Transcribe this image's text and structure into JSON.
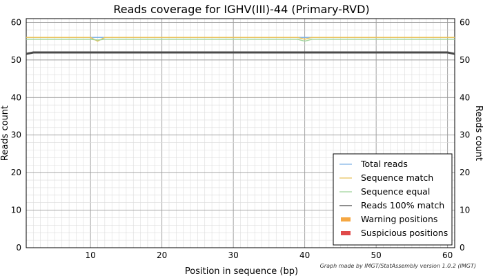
{
  "chart_data": {
    "type": "line",
    "title": "Reads coverage for IGHV(III)-44 (Primary-RVD)",
    "xlabel": "Position in sequence (bp)",
    "ylabel": "Reads count",
    "ylabel_right": "Reads count",
    "credit": "Graph made by IMGT/StatAssembly version 1.0.2 (IMGT)",
    "xlim": [
      1,
      61
    ],
    "ylim": [
      0,
      61
    ],
    "xticks": [
      10,
      20,
      30,
      40,
      50,
      60
    ],
    "yticks": [
      0,
      10,
      20,
      30,
      40,
      50,
      60
    ],
    "grid": true,
    "legend_position": "lower-right",
    "series": [
      {
        "name": "Total reads",
        "color": "#7fb2e5",
        "width": 1.5,
        "points": [
          [
            1,
            56
          ],
          [
            10,
            56
          ],
          [
            11,
            56
          ],
          [
            12,
            56
          ],
          [
            39,
            56
          ],
          [
            40,
            56
          ],
          [
            41,
            56
          ],
          [
            61,
            56
          ]
        ]
      },
      {
        "name": "Sequence match",
        "color": "#e8c15a",
        "width": 1.5,
        "points": [
          [
            1,
            56
          ],
          [
            10,
            56
          ],
          [
            11,
            55
          ],
          [
            12,
            56
          ],
          [
            39,
            56
          ],
          [
            40,
            55.5
          ],
          [
            41,
            56
          ],
          [
            61,
            56
          ]
        ]
      },
      {
        "name": "Sequence equal",
        "color": "#9fd49a",
        "width": 1.5,
        "points": [
          [
            1,
            55.5
          ],
          [
            10,
            55.5
          ],
          [
            11,
            55.3
          ],
          [
            12,
            55.5
          ],
          [
            39,
            55.5
          ],
          [
            40,
            55
          ],
          [
            41,
            55.5
          ],
          [
            61,
            55.5
          ]
        ]
      },
      {
        "name": "Reads 100% match",
        "color": "#4a4a4a",
        "width": 3,
        "points": [
          [
            1,
            51.6
          ],
          [
            2,
            52
          ],
          [
            60,
            52
          ],
          [
            61,
            51.6
          ]
        ]
      }
    ],
    "legend": [
      {
        "name": "Total reads",
        "color": "#7fb2e5",
        "kind": "line"
      },
      {
        "name": "Sequence match",
        "color": "#e8c15a",
        "kind": "line"
      },
      {
        "name": "Sequence equal",
        "color": "#9fd49a",
        "kind": "line"
      },
      {
        "name": "Reads 100% match",
        "color": "#4a4a4a",
        "kind": "line"
      },
      {
        "name": "Warning positions",
        "color": "#f5a742",
        "kind": "bar"
      },
      {
        "name": "Suspicious positions",
        "color": "#e04a4a",
        "kind": "bar"
      }
    ]
  }
}
